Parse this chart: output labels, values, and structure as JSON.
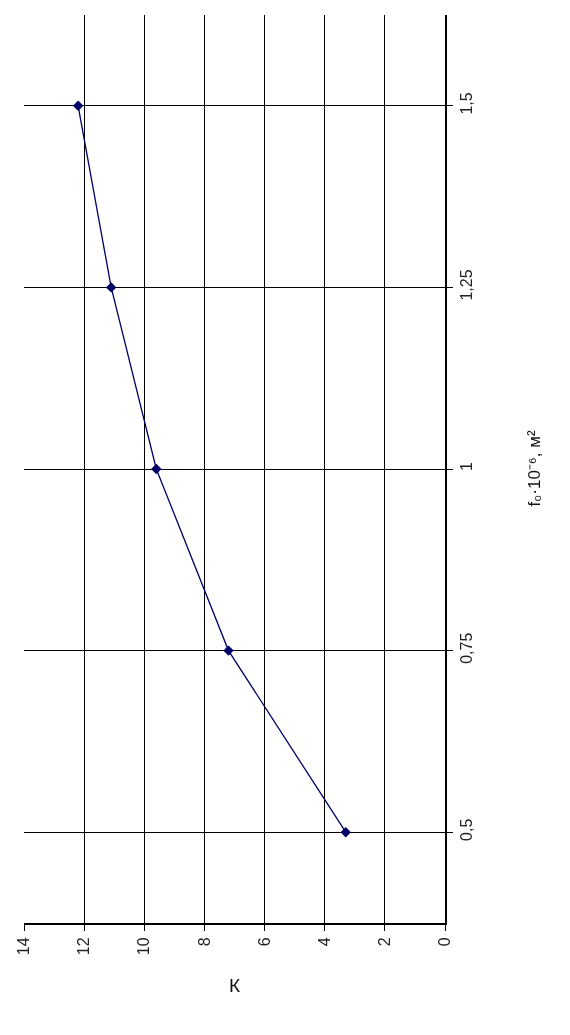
{
  "chart_data": {
    "type": "line",
    "xlabel": "К",
    "ylabel": "f₀·10⁻⁶, м²",
    "x": [
      3.3,
      7.2,
      9.6,
      11.1,
      12.2
    ],
    "series": [
      {
        "color": "#000066",
        "values": [
          0.5,
          0.75,
          1,
          1.25,
          1.5
        ]
      }
    ],
    "xlim": [
      14,
      0
    ],
    "xticks": [
      0,
      2,
      4,
      6,
      8,
      10,
      12,
      14
    ],
    "ylim": [
      0.375,
      1.625
    ],
    "yticks": [
      {
        "value": 0.5,
        "label": "0,5"
      },
      {
        "value": 0.75,
        "label": "0,75"
      },
      1,
      {
        "value": 1.25,
        "label": "1,25"
      },
      {
        "value": 1.5,
        "label": "1,5"
      }
    ],
    "grid": true,
    "marker": "diamond",
    "line_style": "solid"
  }
}
